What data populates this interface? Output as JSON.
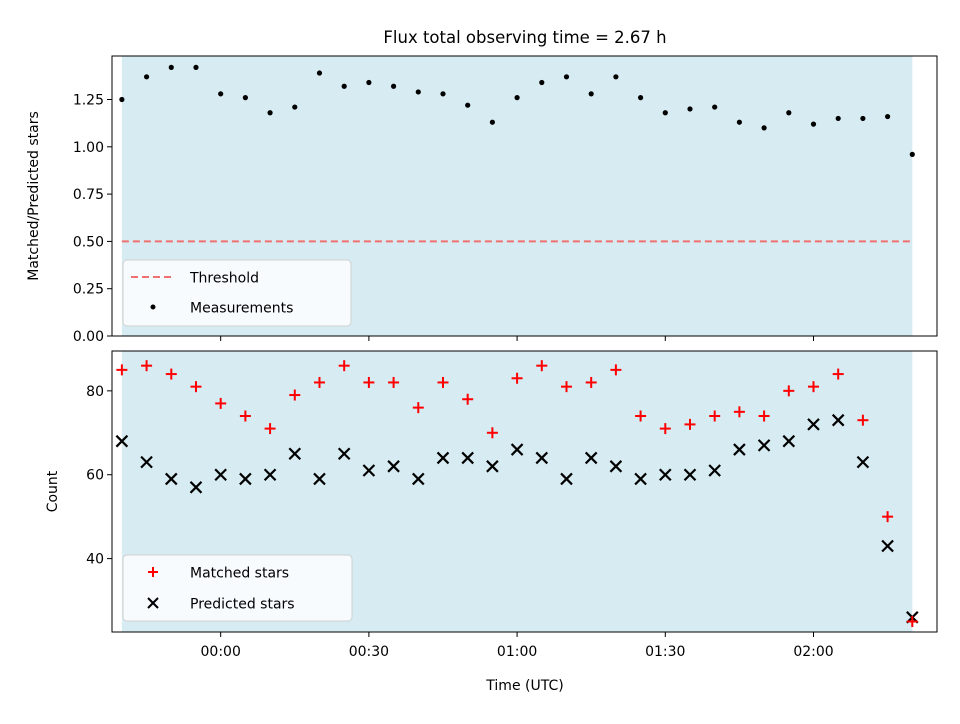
{
  "chart_data": [
    {
      "type": "scatter",
      "title": "Flux total observing time = 2.67 h",
      "xlabel": "",
      "ylabel": "Matched/Predicted stars",
      "xlim": [
        "-00:22",
        "02:25"
      ],
      "ylim": [
        0,
        1.48
      ],
      "y_ticks": [
        "0.00",
        "0.25",
        "0.50",
        "0.75",
        "1.00",
        "1.25"
      ],
      "legend_position": "lower-left",
      "shaded_span": [
        "-00:20",
        "02:20"
      ],
      "shade_color": "#add8e6",
      "threshold": {
        "name": "Threshold",
        "value": 0.5,
        "color": "#f07070"
      },
      "series": [
        {
          "name": "Measurements",
          "color": "#000000",
          "x": [
            "-00:20",
            "-00:15",
            "-00:10",
            "-00:05",
            "00:00",
            "00:05",
            "00:10",
            "00:15",
            "00:20",
            "00:25",
            "00:30",
            "00:35",
            "00:40",
            "00:45",
            "00:50",
            "00:55",
            "01:00",
            "01:05",
            "01:10",
            "01:15",
            "01:20",
            "01:25",
            "01:30",
            "01:35",
            "01:40",
            "01:45",
            "01:50",
            "01:55",
            "02:00",
            "02:05",
            "02:10",
            "02:15",
            "02:20"
          ],
          "values": [
            1.25,
            1.37,
            1.42,
            1.42,
            1.28,
            1.26,
            1.18,
            1.21,
            1.39,
            1.32,
            1.34,
            1.32,
            1.29,
            1.28,
            1.22,
            1.13,
            1.26,
            1.34,
            1.37,
            1.28,
            1.37,
            1.26,
            1.18,
            1.2,
            1.21,
            1.13,
            1.1,
            1.18,
            1.12,
            1.15,
            1.15,
            1.16,
            0.96
          ]
        }
      ]
    },
    {
      "type": "scatter",
      "title": "",
      "xlabel": "Time (UTC)",
      "ylabel": "Count",
      "xlim": [
        "-00:22",
        "02:25"
      ],
      "ylim": [
        22.5,
        89.5
      ],
      "y_ticks": [
        "40",
        "60",
        "80"
      ],
      "x_ticks": [
        "00:00",
        "00:30",
        "01:00",
        "01:30",
        "02:00"
      ],
      "legend_position": "lower-left",
      "shaded_span": [
        "-00:20",
        "02:20"
      ],
      "shade_color": "#add8e6",
      "series": [
        {
          "name": "Matched stars",
          "marker": "plus",
          "color": "#ff0000",
          "x": [
            "-00:20",
            "-00:15",
            "-00:10",
            "-00:05",
            "00:00",
            "00:05",
            "00:10",
            "00:15",
            "00:20",
            "00:25",
            "00:30",
            "00:35",
            "00:40",
            "00:45",
            "00:50",
            "00:55",
            "01:00",
            "01:05",
            "01:10",
            "01:15",
            "01:20",
            "01:25",
            "01:30",
            "01:35",
            "01:40",
            "01:45",
            "01:50",
            "01:55",
            "02:00",
            "02:05",
            "02:10",
            "02:15",
            "02:20"
          ],
          "values": [
            85,
            86,
            84,
            81,
            77,
            74,
            71,
            79,
            82,
            86,
            82,
            82,
            76,
            82,
            78,
            70,
            83,
            86,
            81,
            82,
            85,
            74,
            71,
            72,
            74,
            75,
            74,
            80,
            81,
            84,
            73,
            50,
            25
          ]
        },
        {
          "name": "Predicted stars",
          "marker": "x",
          "color": "#000000",
          "x": [
            "-00:20",
            "-00:15",
            "-00:10",
            "-00:05",
            "00:00",
            "00:05",
            "00:10",
            "00:15",
            "00:20",
            "00:25",
            "00:30",
            "00:35",
            "00:40",
            "00:45",
            "00:50",
            "00:55",
            "01:00",
            "01:05",
            "01:10",
            "01:15",
            "01:20",
            "01:25",
            "01:30",
            "01:35",
            "01:40",
            "01:45",
            "01:50",
            "01:55",
            "02:00",
            "02:05",
            "02:10",
            "02:15",
            "02:20"
          ],
          "values": [
            68,
            63,
            59,
            57,
            60,
            59,
            60,
            65,
            59,
            65,
            61,
            62,
            59,
            64,
            64,
            62,
            66,
            64,
            59,
            64,
            62,
            59,
            60,
            60,
            61,
            66,
            67,
            68,
            72,
            73,
            63,
            43,
            26
          ]
        }
      ]
    }
  ]
}
